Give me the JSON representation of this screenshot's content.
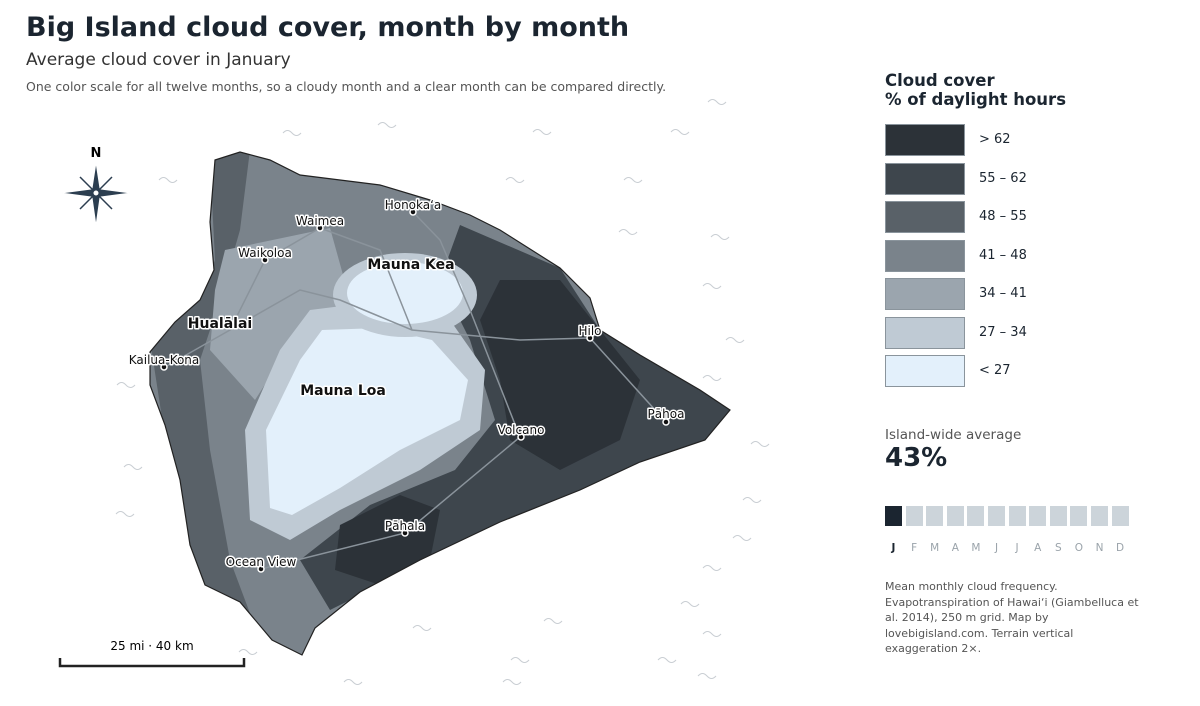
{
  "header": {
    "title": "Big Island cloud cover, month by month",
    "subtitle": "Average cloud cover in January",
    "description": "One color scale for all twelve months, so a cloudy month and a clear month can be compared directly."
  },
  "map": {
    "north": "N",
    "scale_bar": "25 mi · 40 km",
    "peaks": [
      "Mauna Kea",
      "Hualālai",
      "Mauna Loa"
    ],
    "places": [
      "Honoka‘a",
      "Waimea",
      "Waikoloa",
      "Hilo",
      "Kailua-Kona",
      "Pāhoa",
      "Volcano",
      "Pāhala",
      "Ocean View"
    ]
  },
  "legend": {
    "title": "Cloud cover",
    "subtitle": "% of daylight hours",
    "classes": [
      {
        "label": "> 62",
        "color": "#2c3238"
      },
      {
        "label": "55 – 62",
        "color": "#3e464d"
      },
      {
        "label": "48 – 55",
        "color": "#596168"
      },
      {
        "label": "41 – 48",
        "color": "#7a838b"
      },
      {
        "label": "34 – 41",
        "color": "#9ba5ae"
      },
      {
        "label": "27 – 34",
        "color": "#bfcad4"
      },
      {
        "label": "< 27",
        "color": "#e3f0fb"
      }
    ]
  },
  "average": {
    "label": "Island-wide average",
    "value": "43%"
  },
  "months": [
    "J",
    "F",
    "M",
    "A",
    "M",
    "J",
    "J",
    "A",
    "S",
    "O",
    "N",
    "D"
  ],
  "selected_month": 0,
  "source": "Mean monthly cloud frequency. Evapotranspiration of Hawai‘i (Giambelluca et al. 2014), 250 m grid. Map by lovebigisland.com. Terrain vertical exaggeration 2×."
}
